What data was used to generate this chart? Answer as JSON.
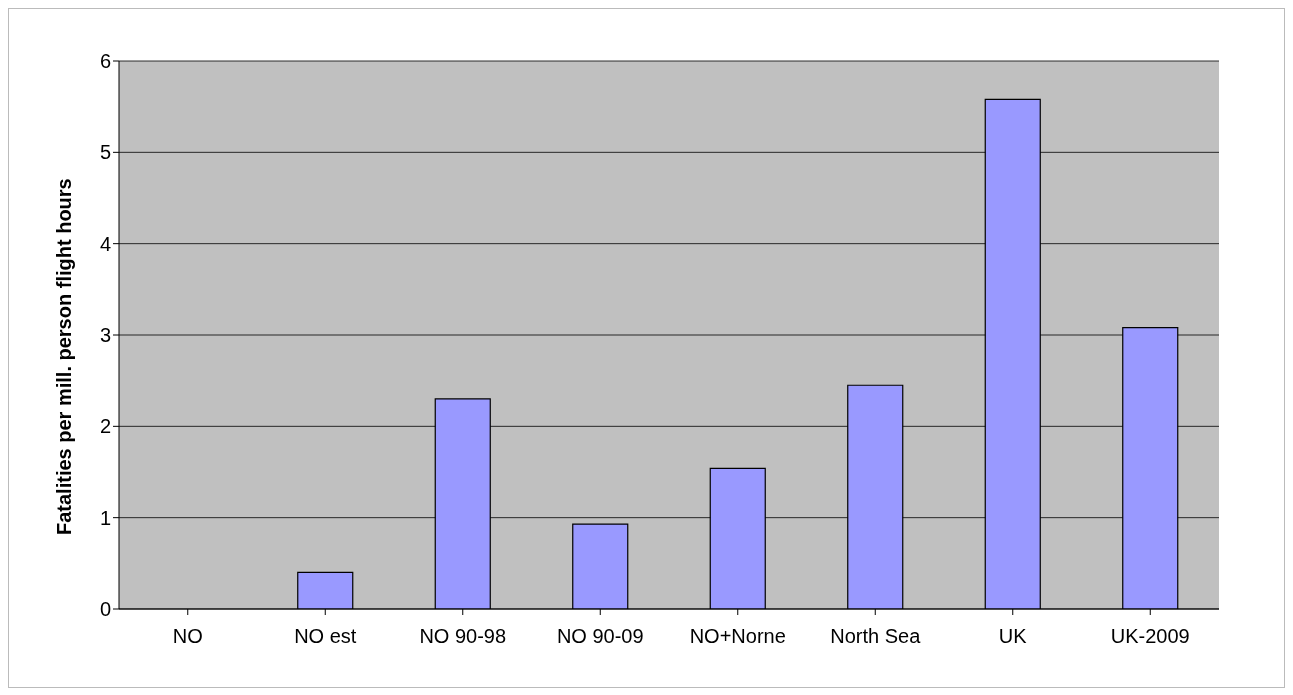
{
  "chart_data": {
    "type": "bar",
    "ylabel": "Fatalities per mill. person flight hours",
    "categories": [
      "NO",
      "NO est",
      "NO 90-98",
      "NO 90-09",
      "NO+Norne",
      "North Sea",
      "UK",
      "UK-2009"
    ],
    "values": [
      0,
      0.4,
      2.3,
      0.93,
      1.54,
      2.45,
      5.58,
      3.08
    ],
    "color": "#9999ff",
    "ylim": [
      0,
      6
    ],
    "yticks": [
      0,
      1,
      2,
      3,
      4,
      5,
      6
    ],
    "grid": "y"
  }
}
